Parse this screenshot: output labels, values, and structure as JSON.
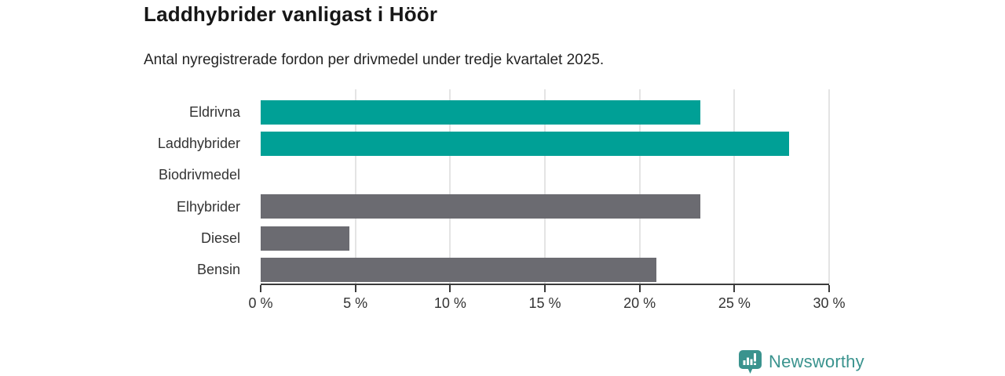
{
  "title": "Laddhybrider vanligast i Höör",
  "subtitle": "Antal nyregistrerade fordon per drivmedel under tredje kvartalet 2025.",
  "chart_data": {
    "type": "bar",
    "orientation": "horizontal",
    "title": "Laddhybrider vanligast i Höör",
    "subtitle": "Antal nyregistrerade fordon per drivmedel under tredje kvartalet 2025.",
    "categories": [
      "Eldrivna",
      "Laddhybrider",
      "Biodrivmedel",
      "Elhybrider",
      "Diesel",
      "Bensin"
    ],
    "values": [
      23.2,
      27.9,
      0,
      23.2,
      4.7,
      20.9
    ],
    "unit": "%",
    "bar_colors": [
      "#00a096",
      "#00a096",
      "#6b6b71",
      "#6b6b71",
      "#6b6b71",
      "#6b6b71"
    ],
    "highlight_color": "#00a096",
    "default_bar_color": "#6b6b71",
    "xlim": [
      0,
      30
    ],
    "x_ticks": [
      "0 %",
      "5 %",
      "10 %",
      "15 %",
      "20 %",
      "25 %",
      "30 %"
    ],
    "xlabel": "",
    "ylabel": "",
    "grid": true,
    "legend": false
  },
  "branding": {
    "logo_text": "Newsworthy",
    "logo_color": "#3a938e",
    "logo_icon": "bar-chart-speech-bubble"
  }
}
